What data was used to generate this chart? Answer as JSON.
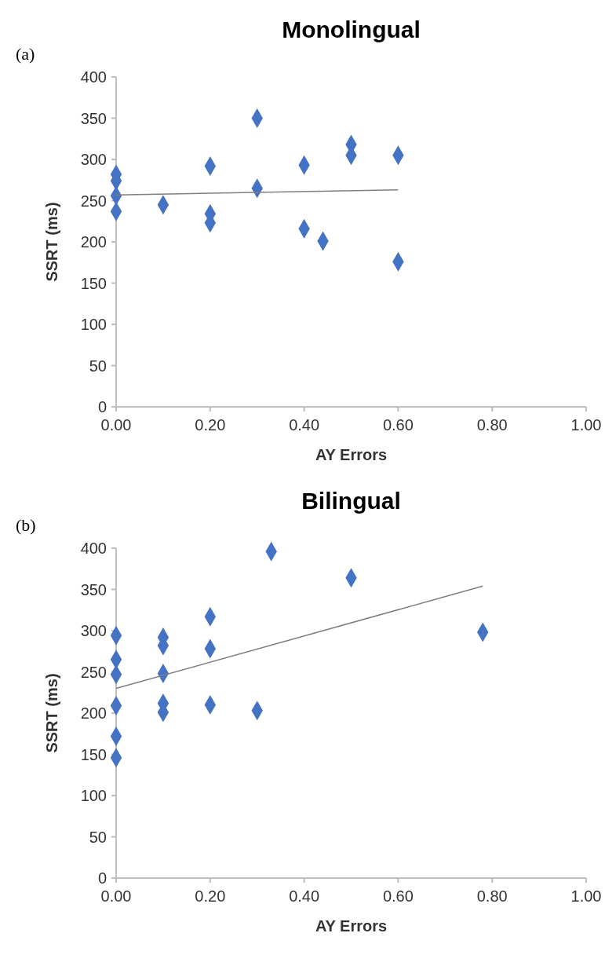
{
  "chart_data": [
    {
      "type": "scatter",
      "title": "Monolingual",
      "xlabel": "AY Errors",
      "ylabel": "SSRT (ms)",
      "annotations": [
        "(a)"
      ],
      "marker": "diamond",
      "grid": false,
      "xlim": [
        0,
        1
      ],
      "xticks": [
        {
          "value": 0,
          "label": "0.00"
        },
        {
          "value": 0.2,
          "label": "0.20"
        },
        {
          "value": 0.4,
          "label": "0.40"
        },
        {
          "value": 0.6,
          "label": "0.60"
        },
        {
          "value": 0.8,
          "label": "0.80"
        },
        {
          "value": 1,
          "label": "1.00"
        }
      ],
      "ylim": [
        0,
        400
      ],
      "yticks": [
        0,
        50,
        100,
        150,
        200,
        250,
        300,
        350,
        400
      ],
      "series": [
        {
          "color": "#4472c4",
          "x": [
            0,
            0,
            0,
            0,
            0.1,
            0.2,
            0.2,
            0.2,
            0.3,
            0.3,
            0.4,
            0.4,
            0.44,
            0.5,
            0.5,
            0.6,
            0.6
          ],
          "values": [
            282,
            274,
            256,
            237,
            245,
            292,
            234,
            223,
            350,
            265,
            293,
            216,
            201,
            318,
            305,
            305,
            176
          ]
        },
        {
          "type": "line",
          "color": "#7f7f7f",
          "marker": "none",
          "x": [
            0,
            0.6
          ],
          "values": [
            257,
            263
          ]
        }
      ]
    },
    {
      "type": "scatter",
      "title": "Bilingual",
      "xlabel": "AY Errors",
      "ylabel": "SSRT (ms)",
      "annotations": [
        "(b)"
      ],
      "marker": "diamond",
      "grid": false,
      "xlim": [
        0,
        1
      ],
      "xticks": [
        {
          "value": 0,
          "label": "0.00"
        },
        {
          "value": 0.2,
          "label": "0.20"
        },
        {
          "value": 0.4,
          "label": "0.40"
        },
        {
          "value": 0.6,
          "label": "0.60"
        },
        {
          "value": 0.8,
          "label": "0.80"
        },
        {
          "value": 1,
          "label": "1.00"
        }
      ],
      "ylim": [
        0,
        400
      ],
      "yticks": [
        0,
        50,
        100,
        150,
        200,
        250,
        300,
        350,
        400
      ],
      "series": [
        {
          "color": "#4472c4",
          "x": [
            0,
            0,
            0,
            0,
            0,
            0,
            0.1,
            0.1,
            0.1,
            0.1,
            0.1,
            0.2,
            0.2,
            0.2,
            0.3,
            0.33,
            0.5,
            0.78
          ],
          "values": [
            294,
            265,
            247,
            209,
            172,
            146,
            292,
            282,
            248,
            212,
            201,
            317,
            278,
            210,
            203,
            396,
            364,
            298
          ]
        },
        {
          "type": "line",
          "color": "#7f7f7f",
          "marker": "none",
          "x": [
            0,
            0.78
          ],
          "values": [
            230,
            354
          ]
        }
      ]
    }
  ]
}
